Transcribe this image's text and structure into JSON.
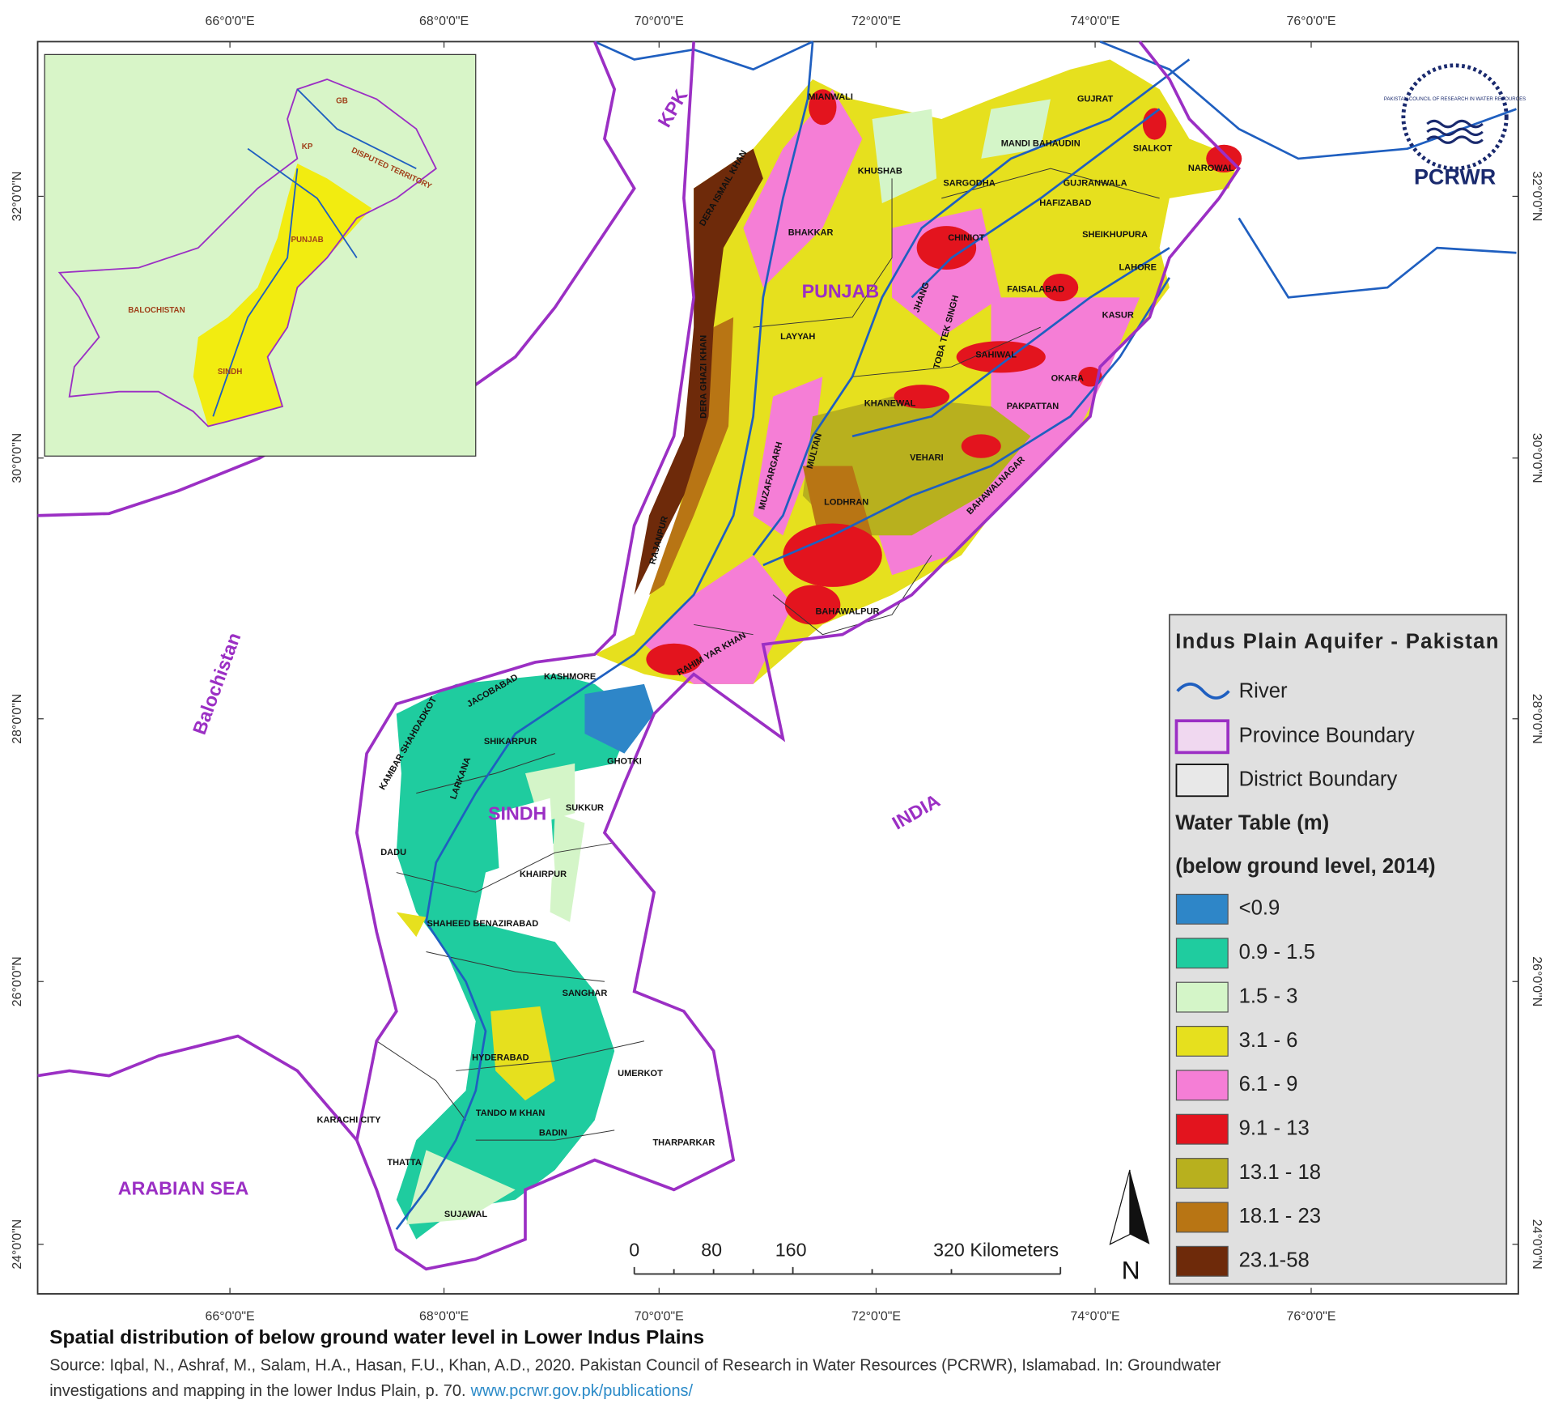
{
  "map": {
    "lon_labels": [
      "66°0'0\"E",
      "68°0'0\"E",
      "70°0'0\"E",
      "72°0'0\"E",
      "74°0'0\"E",
      "76°0'0\"E"
    ],
    "lat_labels": [
      "32°0'0\"N",
      "30°0'0\"N",
      "28°0'0\"N",
      "26°0'0\"N",
      "24°0'0\"N"
    ],
    "regions": [
      "KPK",
      "PUNJAB",
      "Balochistan",
      "SINDH",
      "INDIA",
      "ARABIAN SEA"
    ],
    "districts": [
      "MIANWALI",
      "GUJRAT",
      "MANDI BAHAUDIN",
      "SIALKOT",
      "NAROWAL",
      "KHUSHAB",
      "SARGODHA",
      "GUJRANWALA",
      "HAFIZABAD",
      "DERA ISMAIL KHAN",
      "BHAKKAR",
      "CHINIOT",
      "SHEIKHUPURA",
      "LAHORE",
      "FAISALABAD",
      "JHANG",
      "KASUR",
      "LAYYAH",
      "TOBA TEK SINGH",
      "SAHIWAL",
      "OKARA",
      "DERA GHAZI KHAN",
      "KHANEWAL",
      "PAKPATTAN",
      "MULTAN",
      "MUZAFARGARH",
      "VEHARI",
      "BAHAWALNAGAR",
      "LODHRAN",
      "RAJANPUR",
      "BAHAWALPUR",
      "RAHIM YAR KHAN",
      "KASHMORE",
      "JACOBABAD",
      "KAMBAR SHAHDADKOT",
      "SHIKARPUR",
      "GHOTKI",
      "SUKKUR",
      "LARKANA",
      "DADU",
      "KHAIRPUR",
      "SHAHEED BENAZIRABAD",
      "SANGHAR",
      "HYDERABAD",
      "UMERKOT",
      "KARACHI CITY",
      "TANDO M KHAN",
      "BADIN",
      "THARPARKAR",
      "THATTA",
      "SUJAWAL"
    ],
    "inset_labels": [
      "GB",
      "KP",
      "DISPUTED TERRITORY",
      "PUNJAB",
      "BALOCHISTAN",
      "SINDH"
    ],
    "logo": {
      "subtext": "PAKISTAN COUNCIL OF RESEARCH IN WATER RESOURCES",
      "text": "PCRWR"
    },
    "legend": {
      "title": "Indus Plain Aquifer - Pakistan",
      "river": "River",
      "province": "Province Boundary",
      "district": "District Boundary",
      "heading": "Water Table (m)",
      "subheading": "(below ground level, 2014)",
      "classes": [
        {
          "label": "<0.9",
          "color": "#2e86c8"
        },
        {
          "label": "0.9 - 1.5",
          "color": "#1fcc9f"
        },
        {
          "label": "1.5 - 3",
          "color": "#d4f5c8"
        },
        {
          "label": "3.1 - 6",
          "color": "#e6e01e"
        },
        {
          "label": "6.1 - 9",
          "color": "#f57ed6"
        },
        {
          "label": "9.1 - 13",
          "color": "#e3141e"
        },
        {
          "label": "13.1 - 18",
          "color": "#b8b01e"
        },
        {
          "label": "18.1 - 23",
          "color": "#b87514"
        },
        {
          "label": "23.1-58",
          "color": "#6e2a0a"
        }
      ]
    },
    "scale_bar": [
      "0",
      "80",
      "160",
      "320 Kilometers"
    ],
    "north": "N"
  },
  "caption": {
    "title": "Spatial distribution of below ground water level in Lower Indus Plains",
    "source_line1": "Source: Iqbal, N., Ashraf, M., Salam, H.A., Hasan, F.U., Khan, A.D., 2020. Pakistan Council of Research in Water Resources (PCRWR), Islamabad. In: Groundwater",
    "source_line2": "investigations and mapping in the lower Indus Plain, p. 70.",
    "link": "www.pcrwr.gov.pk/publications/"
  }
}
